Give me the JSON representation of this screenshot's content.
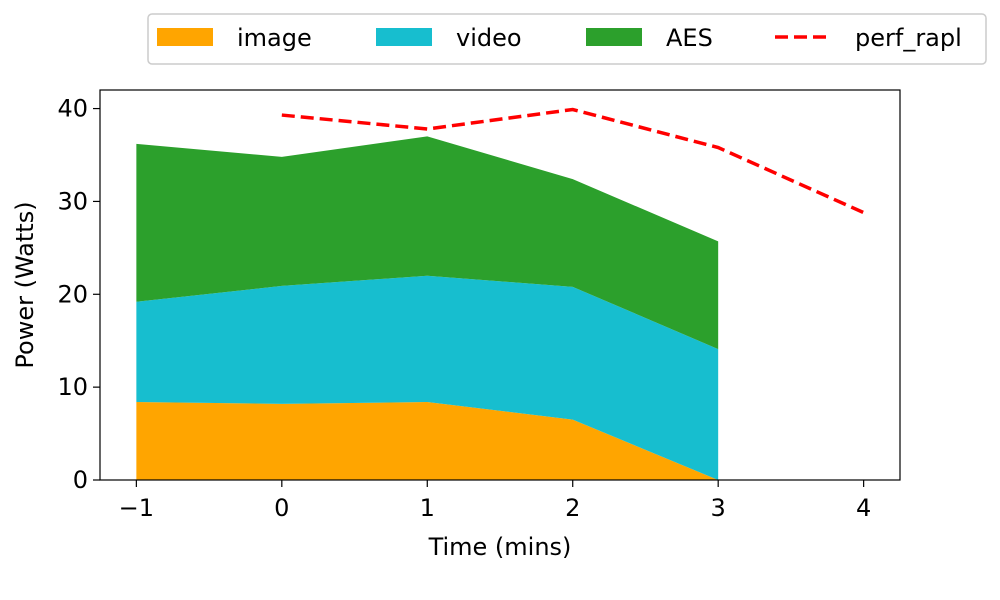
{
  "chart_data": {
    "type": "area",
    "stacked": true,
    "xlabel": "Time (mins)",
    "ylabel": "Power (Watts)",
    "xlim": [
      -1.25,
      4.25
    ],
    "ylim": [
      0,
      42
    ],
    "x_ticks": [
      -1,
      0,
      1,
      2,
      3,
      4
    ],
    "x_tick_labels": [
      "−1",
      "0",
      "1",
      "2",
      "3",
      "4"
    ],
    "y_ticks": [
      0,
      10,
      20,
      30,
      40
    ],
    "y_tick_labels": [
      "0",
      "10",
      "20",
      "30",
      "40"
    ],
    "grid": false,
    "legend_position": "top, outside plot",
    "x": [
      -1,
      0,
      1,
      2,
      3
    ],
    "series": [
      {
        "name": "image",
        "color": "#ffa500",
        "values": [
          8.4,
          8.2,
          8.4,
          6.5,
          0.0
        ]
      },
      {
        "name": "video",
        "color": "#17becf",
        "values": [
          10.8,
          12.7,
          13.6,
          14.3,
          14.1
        ]
      },
      {
        "name": "AES",
        "color": "#2ca02c",
        "values": [
          17.0,
          13.9,
          15.0,
          11.6,
          11.6
        ]
      }
    ],
    "lines": [
      {
        "name": "perf_rapl",
        "color": "#ff0000",
        "style": "dashed",
        "x": [
          0,
          1,
          2,
          3,
          4
        ],
        "values": [
          39.3,
          37.8,
          39.9,
          35.8,
          28.8
        ]
      }
    ]
  }
}
